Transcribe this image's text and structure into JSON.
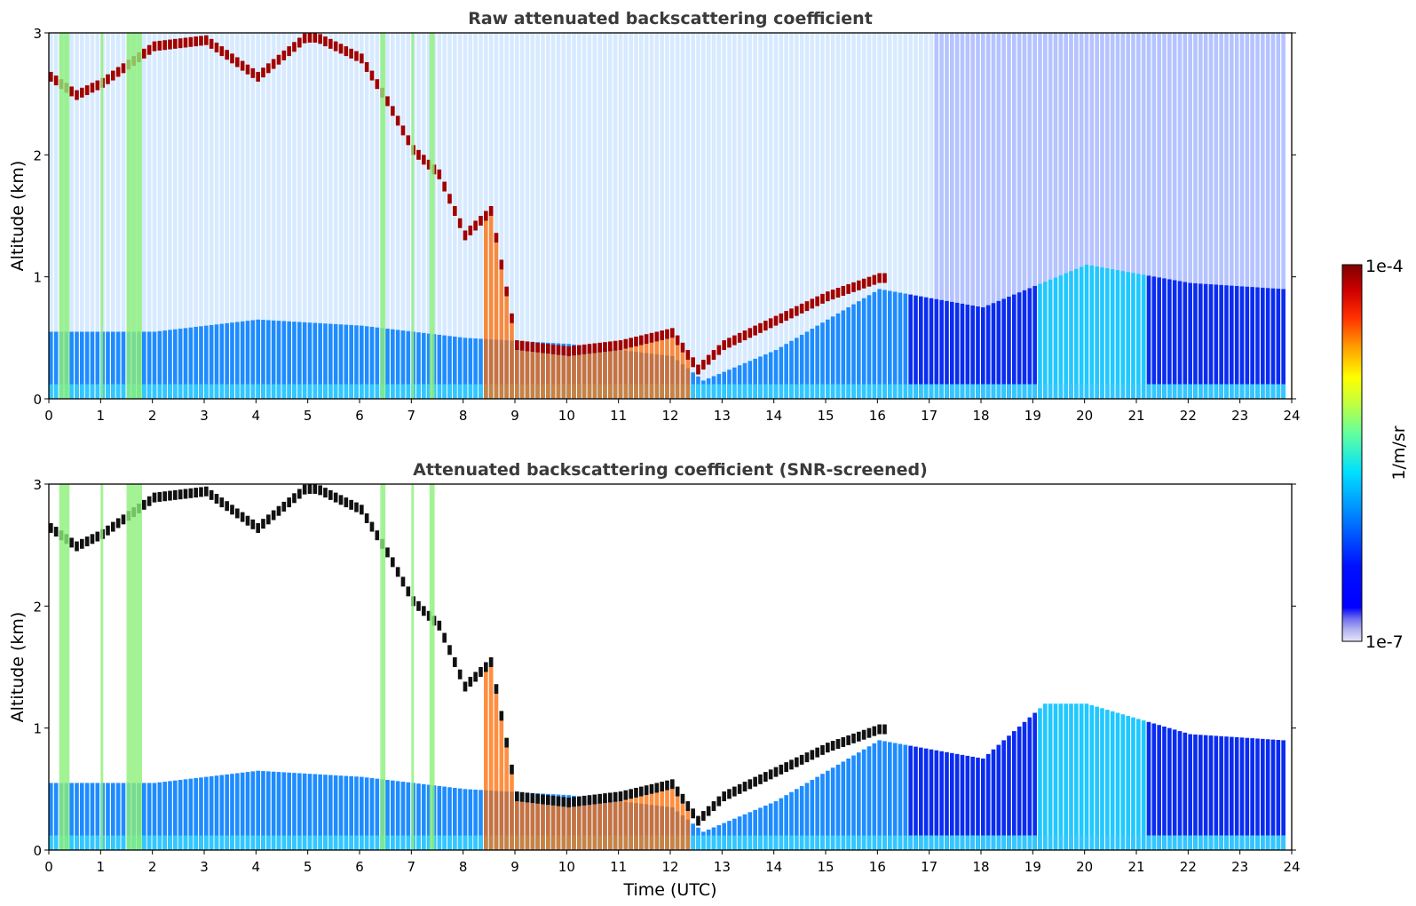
{
  "chart_data": [
    {
      "type": "heatmap",
      "title": "Raw attenuated backscattering coefficient",
      "xlabel": "",
      "ylabel": "Altitude (km)",
      "xlim": [
        0,
        24
      ],
      "ylim": [
        0,
        3
      ],
      "xticks": [
        "0",
        "1",
        "2",
        "3",
        "4",
        "5",
        "6",
        "7",
        "8",
        "9",
        "10",
        "11",
        "12",
        "13",
        "14",
        "15",
        "16",
        "17",
        "18",
        "19",
        "20",
        "21",
        "22",
        "23",
        "24"
      ],
      "yticks": [
        "0",
        "1",
        "2",
        "3"
      ],
      "color_scale": "jet",
      "features": [
        {
          "type": "boundary_layer_top",
          "x": [
            0,
            2,
            4,
            6,
            8,
            10,
            12,
            12.6,
            14,
            16,
            18,
            20,
            22,
            23.8
          ],
          "y": [
            0.55,
            0.55,
            0.65,
            0.6,
            0.5,
            0.45,
            0.35,
            0.15,
            0.4,
            0.9,
            0.75,
            1.1,
            0.95,
            0.9
          ]
        },
        {
          "type": "cloud_layer",
          "x": [
            0,
            0.5,
            1,
            2,
            3,
            4,
            5,
            6,
            6.5,
            7,
            7.5,
            8,
            8.5,
            9,
            10,
            11,
            12,
            12.5,
            13,
            14,
            15,
            16
          ],
          "y": [
            2.6,
            2.45,
            2.55,
            2.85,
            2.9,
            2.6,
            2.95,
            2.75,
            2.4,
            2.0,
            1.8,
            1.3,
            1.5,
            0.4,
            0.35,
            0.4,
            0.5,
            0.2,
            0.4,
            0.6,
            0.8,
            0.95
          ]
        }
      ]
    },
    {
      "type": "heatmap",
      "title": "Attenuated backscattering coefficient (SNR-screened)",
      "xlabel": "Time (UTC)",
      "ylabel": "Altitude (km)",
      "xlim": [
        0,
        24
      ],
      "ylim": [
        0,
        3
      ],
      "xticks": [
        "0",
        "1",
        "2",
        "3",
        "4",
        "5",
        "6",
        "7",
        "8",
        "9",
        "10",
        "11",
        "12",
        "13",
        "14",
        "15",
        "16",
        "17",
        "18",
        "19",
        "20",
        "21",
        "22",
        "23",
        "24"
      ],
      "yticks": [
        "0",
        "1",
        "2",
        "3"
      ],
      "color_scale": "jet",
      "features": [
        {
          "type": "boundary_layer_top",
          "x": [
            0,
            2,
            4,
            6,
            8,
            10,
            12,
            12.6,
            14,
            16,
            18,
            19.2,
            20,
            22,
            23.8
          ],
          "y": [
            0.55,
            0.55,
            0.65,
            0.6,
            0.5,
            0.45,
            0.35,
            0.15,
            0.4,
            0.9,
            0.75,
            1.2,
            1.2,
            0.95,
            0.9
          ]
        },
        {
          "type": "cloud_layer",
          "x": [
            0,
            0.5,
            1,
            2,
            3,
            4,
            5,
            6,
            6.5,
            7,
            7.5,
            8,
            8.5,
            9,
            10,
            11,
            12,
            12.5,
            13,
            14,
            15,
            16
          ],
          "y": [
            2.6,
            2.45,
            2.55,
            2.85,
            2.9,
            2.6,
            2.95,
            2.75,
            2.4,
            2.0,
            1.8,
            1.3,
            1.5,
            0.4,
            0.35,
            0.4,
            0.5,
            0.2,
            0.4,
            0.6,
            0.8,
            0.95
          ]
        }
      ]
    }
  ],
  "colorbar": {
    "label": "1/m/sr",
    "max_label": "1e-4",
    "min_label": "1e-7",
    "range": [
      1e-07,
      0.0001
    ],
    "colors": [
      "#e0e0f8",
      "#b8b8f2",
      "#9090ec",
      "#5a5af0",
      "#1a1aff",
      "#0000ff",
      "#0040ff",
      "#0080ff",
      "#00b0ff",
      "#00e0ff",
      "#40ffc0",
      "#80ff80",
      "#c0ff40",
      "#ffff00",
      "#ffc000",
      "#ff8000",
      "#ff4000",
      "#e00000",
      "#a00000",
      "#800000"
    ]
  }
}
